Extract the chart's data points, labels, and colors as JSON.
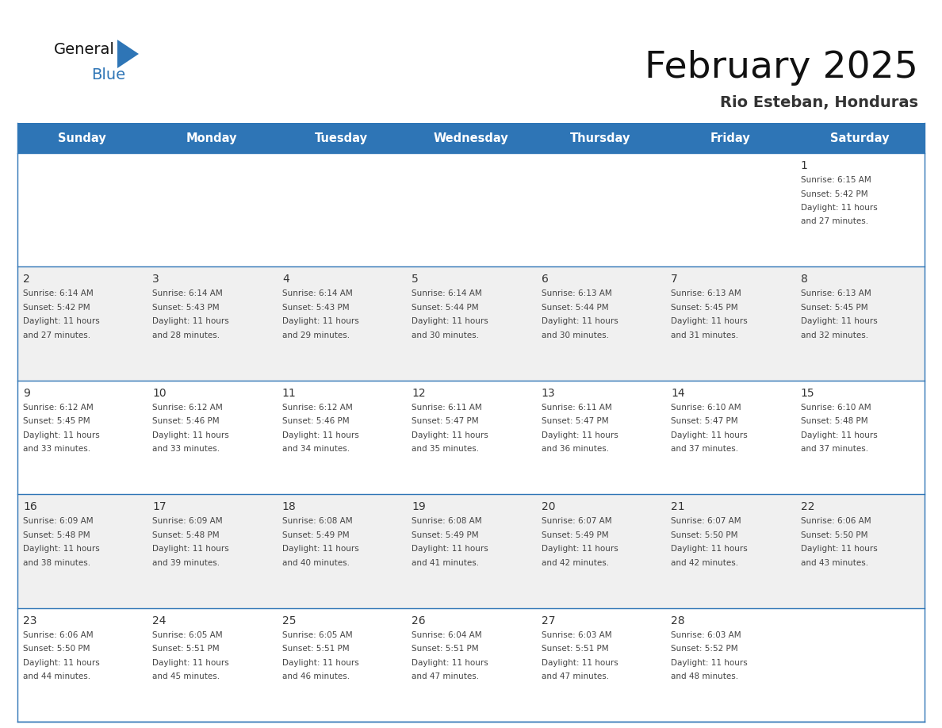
{
  "title": "February 2025",
  "subtitle": "Rio Esteban, Honduras",
  "header_bg": "#2e75b6",
  "header_text_color": "#ffffff",
  "cell_bg_white": "#ffffff",
  "cell_bg_light": "#f0f0f0",
  "border_color": "#2e75b6",
  "day_headers": [
    "Sunday",
    "Monday",
    "Tuesday",
    "Wednesday",
    "Thursday",
    "Friday",
    "Saturday"
  ],
  "text_color": "#444444",
  "day_number_color": "#333333",
  "logo_general_color": "#111111",
  "logo_blue_color": "#2e75b6",
  "calendar_data": [
    [
      null,
      null,
      null,
      null,
      null,
      null,
      {
        "day": 1,
        "sunrise": "6:15 AM",
        "sunset": "5:42 PM",
        "daylight": "11 hours",
        "daylight2": "and 27 minutes."
      }
    ],
    [
      {
        "day": 2,
        "sunrise": "6:14 AM",
        "sunset": "5:42 PM",
        "daylight": "11 hours",
        "daylight2": "and 27 minutes."
      },
      {
        "day": 3,
        "sunrise": "6:14 AM",
        "sunset": "5:43 PM",
        "daylight": "11 hours",
        "daylight2": "and 28 minutes."
      },
      {
        "day": 4,
        "sunrise": "6:14 AM",
        "sunset": "5:43 PM",
        "daylight": "11 hours",
        "daylight2": "and 29 minutes."
      },
      {
        "day": 5,
        "sunrise": "6:14 AM",
        "sunset": "5:44 PM",
        "daylight": "11 hours",
        "daylight2": "and 30 minutes."
      },
      {
        "day": 6,
        "sunrise": "6:13 AM",
        "sunset": "5:44 PM",
        "daylight": "11 hours",
        "daylight2": "and 30 minutes."
      },
      {
        "day": 7,
        "sunrise": "6:13 AM",
        "sunset": "5:45 PM",
        "daylight": "11 hours",
        "daylight2": "and 31 minutes."
      },
      {
        "day": 8,
        "sunrise": "6:13 AM",
        "sunset": "5:45 PM",
        "daylight": "11 hours",
        "daylight2": "and 32 minutes."
      }
    ],
    [
      {
        "day": 9,
        "sunrise": "6:12 AM",
        "sunset": "5:45 PM",
        "daylight": "11 hours",
        "daylight2": "and 33 minutes."
      },
      {
        "day": 10,
        "sunrise": "6:12 AM",
        "sunset": "5:46 PM",
        "daylight": "11 hours",
        "daylight2": "and 33 minutes."
      },
      {
        "day": 11,
        "sunrise": "6:12 AM",
        "sunset": "5:46 PM",
        "daylight": "11 hours",
        "daylight2": "and 34 minutes."
      },
      {
        "day": 12,
        "sunrise": "6:11 AM",
        "sunset": "5:47 PM",
        "daylight": "11 hours",
        "daylight2": "and 35 minutes."
      },
      {
        "day": 13,
        "sunrise": "6:11 AM",
        "sunset": "5:47 PM",
        "daylight": "11 hours",
        "daylight2": "and 36 minutes."
      },
      {
        "day": 14,
        "sunrise": "6:10 AM",
        "sunset": "5:47 PM",
        "daylight": "11 hours",
        "daylight2": "and 37 minutes."
      },
      {
        "day": 15,
        "sunrise": "6:10 AM",
        "sunset": "5:48 PM",
        "daylight": "11 hours",
        "daylight2": "and 37 minutes."
      }
    ],
    [
      {
        "day": 16,
        "sunrise": "6:09 AM",
        "sunset": "5:48 PM",
        "daylight": "11 hours",
        "daylight2": "and 38 minutes."
      },
      {
        "day": 17,
        "sunrise": "6:09 AM",
        "sunset": "5:48 PM",
        "daylight": "11 hours",
        "daylight2": "and 39 minutes."
      },
      {
        "day": 18,
        "sunrise": "6:08 AM",
        "sunset": "5:49 PM",
        "daylight": "11 hours",
        "daylight2": "and 40 minutes."
      },
      {
        "day": 19,
        "sunrise": "6:08 AM",
        "sunset": "5:49 PM",
        "daylight": "11 hours",
        "daylight2": "and 41 minutes."
      },
      {
        "day": 20,
        "sunrise": "6:07 AM",
        "sunset": "5:49 PM",
        "daylight": "11 hours",
        "daylight2": "and 42 minutes."
      },
      {
        "day": 21,
        "sunrise": "6:07 AM",
        "sunset": "5:50 PM",
        "daylight": "11 hours",
        "daylight2": "and 42 minutes."
      },
      {
        "day": 22,
        "sunrise": "6:06 AM",
        "sunset": "5:50 PM",
        "daylight": "11 hours",
        "daylight2": "and 43 minutes."
      }
    ],
    [
      {
        "day": 23,
        "sunrise": "6:06 AM",
        "sunset": "5:50 PM",
        "daylight": "11 hours",
        "daylight2": "and 44 minutes."
      },
      {
        "day": 24,
        "sunrise": "6:05 AM",
        "sunset": "5:51 PM",
        "daylight": "11 hours",
        "daylight2": "and 45 minutes."
      },
      {
        "day": 25,
        "sunrise": "6:05 AM",
        "sunset": "5:51 PM",
        "daylight": "11 hours",
        "daylight2": "and 46 minutes."
      },
      {
        "day": 26,
        "sunrise": "6:04 AM",
        "sunset": "5:51 PM",
        "daylight": "11 hours",
        "daylight2": "and 47 minutes."
      },
      {
        "day": 27,
        "sunrise": "6:03 AM",
        "sunset": "5:51 PM",
        "daylight": "11 hours",
        "daylight2": "and 47 minutes."
      },
      {
        "day": 28,
        "sunrise": "6:03 AM",
        "sunset": "5:52 PM",
        "daylight": "11 hours",
        "daylight2": "and 48 minutes."
      },
      null
    ]
  ]
}
